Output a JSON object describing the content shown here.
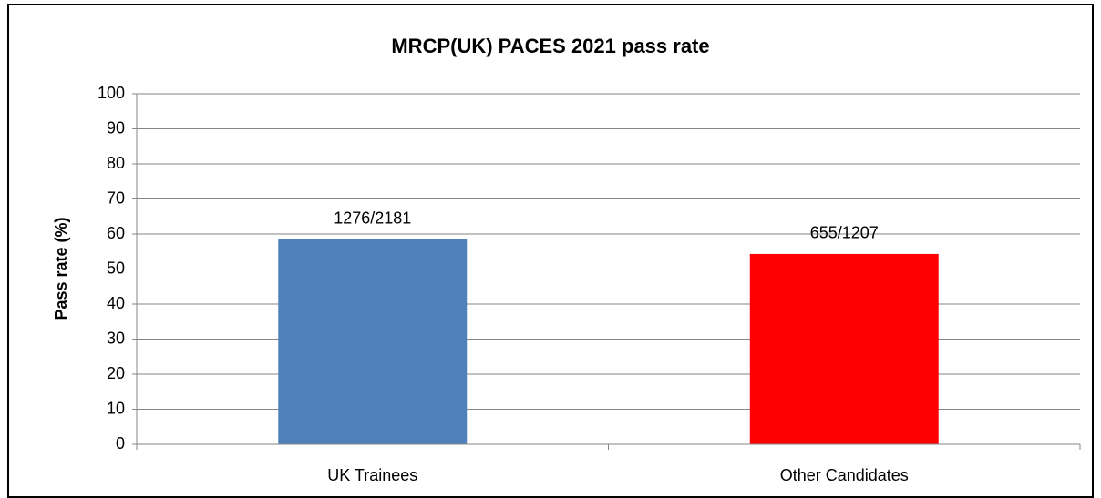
{
  "chart_data": {
    "type": "bar",
    "title": "MRCP(UK) PACES 2021 pass rate",
    "y_label": "Pass rate (%)",
    "categories": [
      "UK Trainees",
      "Other Candidates"
    ],
    "values": [
      58.5,
      54.3
    ],
    "value_labels": [
      "1276/2181",
      "655/1207"
    ],
    "colors": [
      "#4f81bd",
      "#ff0000"
    ],
    "ylim": [
      0,
      100
    ],
    "yticks": [
      0,
      10,
      20,
      30,
      40,
      50,
      60,
      70,
      80,
      90,
      100
    ],
    "grid": true
  }
}
